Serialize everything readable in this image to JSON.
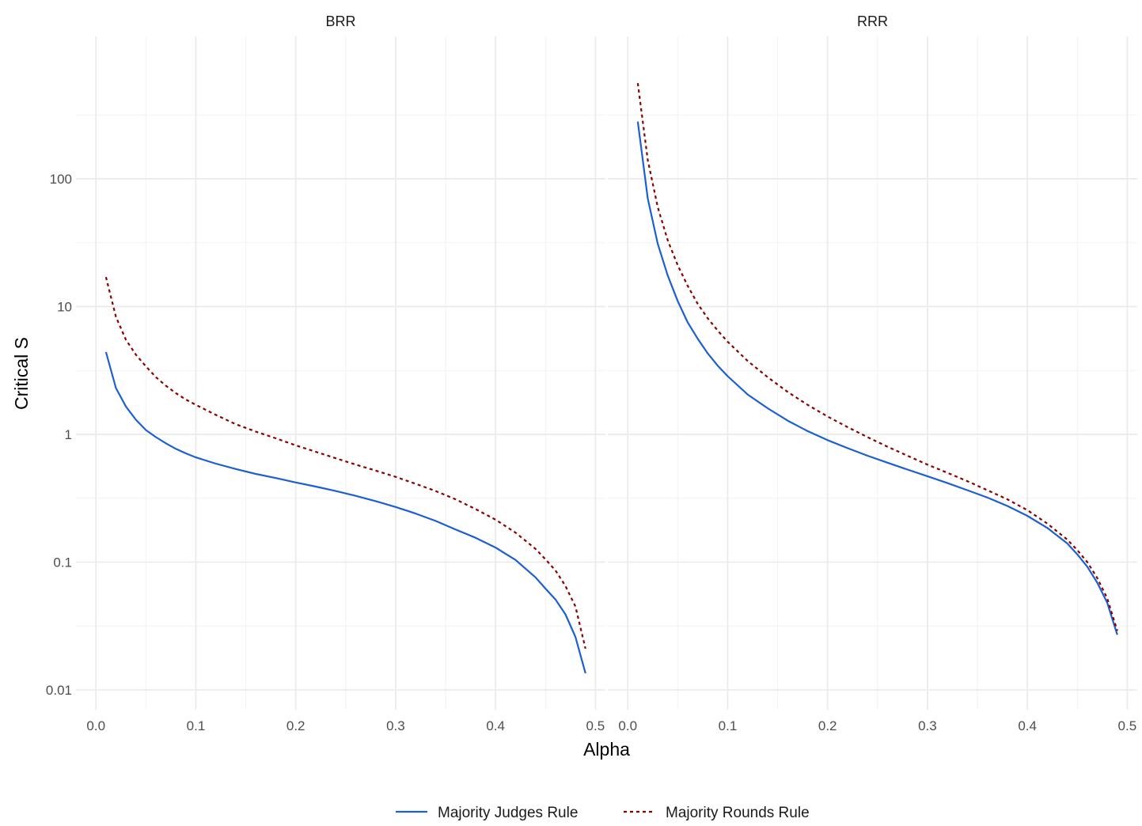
{
  "chart_data": {
    "type": "line",
    "xlabel": "Alpha",
    "ylabel": "Critical S",
    "y_scale": "log10",
    "xlim": [
      0.0,
      0.5
    ],
    "ylim": [
      0.01,
      1000
    ],
    "x_ticks": [
      "0.0",
      "0.1",
      "0.2",
      "0.3",
      "0.4",
      "0.5"
    ],
    "y_ticks": [
      "0.01",
      "0.1",
      "1",
      "10",
      "100"
    ],
    "grid": true,
    "legend_position": "bottom",
    "series_styles": [
      {
        "name": "Majority Judges Rule",
        "color": "#1b5fd1",
        "dash": "solid"
      },
      {
        "name": "Majority Rounds Rule",
        "color": "#8b0000",
        "dash": "dotted"
      }
    ],
    "panels": [
      {
        "title": "BRR",
        "series": [
          {
            "name": "Majority Judges Rule",
            "x": [
              0.01,
              0.02,
              0.03,
              0.04,
              0.05,
              0.06,
              0.07,
              0.08,
              0.09,
              0.1,
              0.12,
              0.14,
              0.16,
              0.18,
              0.2,
              0.22,
              0.24,
              0.26,
              0.28,
              0.3,
              0.32,
              0.34,
              0.36,
              0.38,
              0.4,
              0.42,
              0.44,
              0.45,
              0.46,
              0.47,
              0.48,
              0.49
            ],
            "y": [
              4.4,
              2.3,
              1.65,
              1.3,
              1.08,
              0.95,
              0.85,
              0.77,
              0.71,
              0.66,
              0.59,
              0.535,
              0.49,
              0.455,
              0.42,
              0.39,
              0.36,
              0.33,
              0.3,
              0.27,
              0.24,
              0.21,
              0.18,
              0.155,
              0.13,
              0.104,
              0.076,
              0.062,
              0.051,
              0.039,
              0.026,
              0.0135
            ]
          },
          {
            "name": "Majority Rounds Rule",
            "x": [
              0.01,
              0.02,
              0.03,
              0.04,
              0.05,
              0.06,
              0.07,
              0.08,
              0.09,
              0.1,
              0.12,
              0.14,
              0.16,
              0.18,
              0.2,
              0.22,
              0.24,
              0.26,
              0.28,
              0.3,
              0.32,
              0.34,
              0.36,
              0.38,
              0.4,
              0.42,
              0.44,
              0.45,
              0.46,
              0.47,
              0.48,
              0.49
            ],
            "y": [
              17,
              8.3,
              5.5,
              4.2,
              3.4,
              2.8,
              2.4,
              2.1,
              1.87,
              1.7,
              1.42,
              1.2,
              1.05,
              0.93,
              0.82,
              0.73,
              0.65,
              0.58,
              0.52,
              0.465,
              0.41,
              0.36,
              0.31,
              0.26,
              0.215,
              0.17,
              0.127,
              0.105,
              0.086,
              0.065,
              0.045,
              0.021
            ]
          }
        ]
      },
      {
        "title": "RRR",
        "series": [
          {
            "name": "Majority Judges Rule",
            "x": [
              0.01,
              0.02,
              0.03,
              0.04,
              0.05,
              0.06,
              0.07,
              0.08,
              0.09,
              0.1,
              0.12,
              0.14,
              0.16,
              0.18,
              0.2,
              0.22,
              0.24,
              0.26,
              0.28,
              0.3,
              0.32,
              0.34,
              0.36,
              0.38,
              0.4,
              0.42,
              0.44,
              0.45,
              0.46,
              0.47,
              0.48,
              0.49
            ],
            "y": [
              280,
              70,
              31,
              17.5,
              11,
              7.5,
              5.6,
              4.3,
              3.45,
              2.85,
              2.05,
              1.6,
              1.28,
              1.06,
              0.9,
              0.78,
              0.68,
              0.6,
              0.53,
              0.47,
              0.415,
              0.365,
              0.32,
              0.275,
              0.23,
              0.185,
              0.14,
              0.115,
              0.092,
              0.069,
              0.048,
              0.027
            ]
          },
          {
            "name": "Majority Rounds Rule",
            "x": [
              0.01,
              0.02,
              0.03,
              0.04,
              0.05,
              0.06,
              0.07,
              0.08,
              0.09,
              0.1,
              0.12,
              0.14,
              0.16,
              0.18,
              0.2,
              0.22,
              0.24,
              0.26,
              0.28,
              0.3,
              0.32,
              0.34,
              0.36,
              0.38,
              0.4,
              0.42,
              0.44,
              0.45,
              0.46,
              0.47,
              0.48,
              0.49
            ],
            "y": [
              560,
              140,
              60,
              33,
              21,
              14.5,
              10.5,
              8.1,
              6.5,
              5.3,
              3.75,
              2.8,
              2.15,
              1.7,
              1.38,
              1.14,
              0.95,
              0.8,
              0.68,
              0.58,
              0.5,
              0.43,
              0.365,
              0.31,
              0.255,
              0.2,
              0.15,
              0.124,
              0.1,
              0.075,
              0.052,
              0.029
            ]
          }
        ]
      }
    ]
  }
}
